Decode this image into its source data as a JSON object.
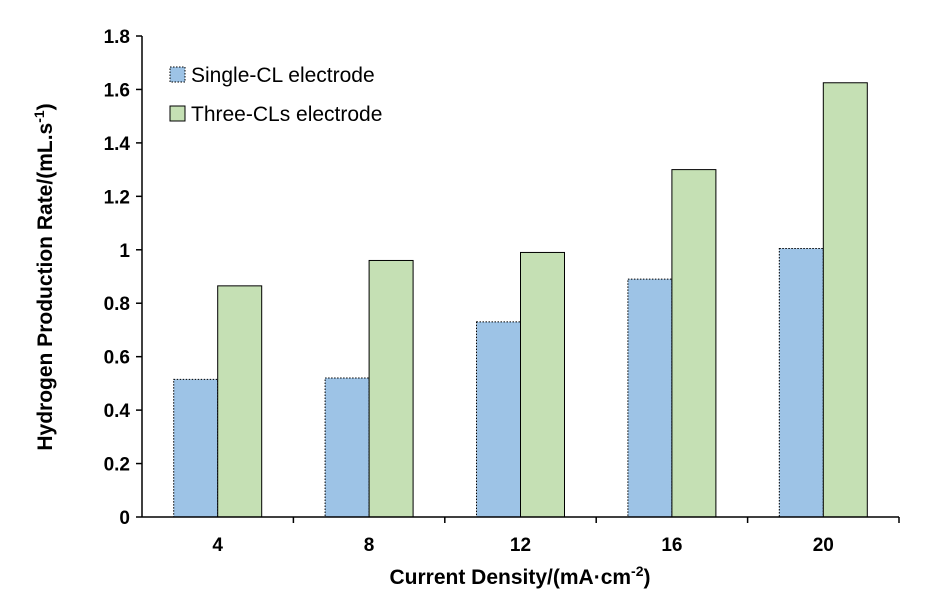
{
  "chart_data": {
    "type": "bar",
    "categories": [
      "4",
      "8",
      "12",
      "16",
      "20"
    ],
    "series": [
      {
        "name": "Single-CL electrode",
        "values": [
          0.515,
          0.52,
          0.73,
          0.89,
          1.005
        ],
        "color": "#9dc3e6",
        "border": "dotted"
      },
      {
        "name": "Three-CLs electrode",
        "values": [
          0.865,
          0.96,
          0.99,
          1.3,
          1.625
        ],
        "color": "#c5e0b4",
        "border": "solid"
      }
    ],
    "xlabel": {
      "main": "Current Density/(mA·cm",
      "sup": "-2",
      "tail": ")"
    },
    "ylabel": {
      "main": "Hydrogen Production Rate/(mL.s",
      "sup": "-1",
      "tail": ")"
    },
    "ylim": [
      0,
      1.8
    ],
    "yticks": [
      "0",
      "0.2",
      "0.4",
      "0.6",
      "0.8",
      "1",
      "1.2",
      "1.4",
      "1.6",
      "1.8"
    ],
    "grid": false,
    "legend_position": "top-left"
  }
}
